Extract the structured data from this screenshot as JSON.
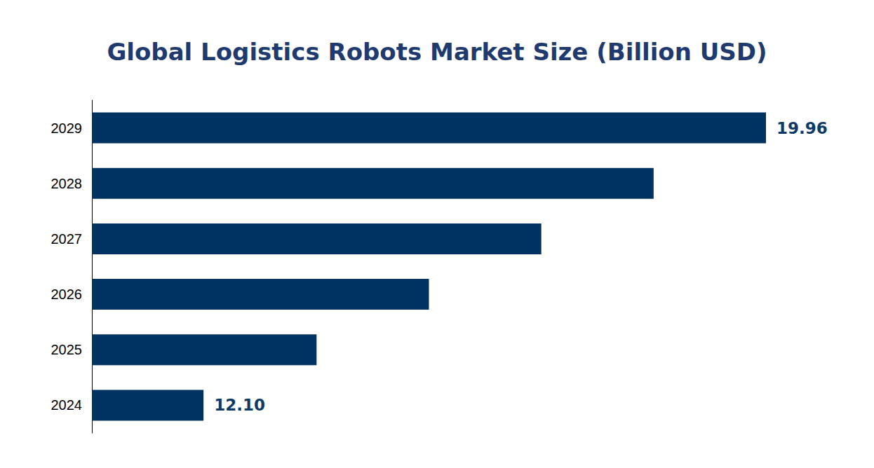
{
  "chart_data": {
    "type": "bar",
    "title": "Global Logistics Robots Market Size (Billion USD)",
    "orientation": "horizontal",
    "categories": [
      "2024",
      "2025",
      "2026",
      "2027",
      "2028",
      "2029"
    ],
    "values": [
      12.1,
      13.68,
      15.25,
      16.82,
      18.39,
      19.96
    ],
    "value_labels": [
      "12.10",
      null,
      null,
      null,
      null,
      "19.96"
    ],
    "data_labels": true,
    "color": "#003361",
    "xlim": [
      10.54,
      19.96
    ],
    "tick_labels": "y",
    "grid": false
  }
}
